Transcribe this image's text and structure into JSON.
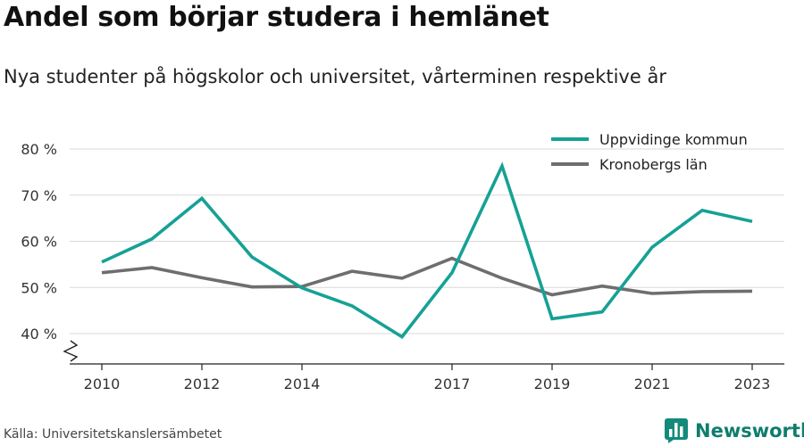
{
  "title": "Andel som börjar studera i hemlänet",
  "subtitle": "Nya studenter på högskolor och universitet, vårterminen respektive år",
  "source": "Källa: Universitetskanslersämbetet",
  "brand": {
    "name": "Newsworthy",
    "icon": "bar-chart-logo-icon",
    "color": "#138a7a"
  },
  "chart_data": {
    "type": "line",
    "x_ticks": [
      "2010",
      "2012",
      "2014",
      "2017",
      "2019",
      "2021",
      "2023"
    ],
    "x_range": [
      2010,
      2023
    ],
    "y_ticks": [
      "40 %",
      "50 %",
      "60 %",
      "70 %",
      "80 %"
    ],
    "ylim": [
      40,
      80
    ],
    "y_axis_break": true,
    "grid": true,
    "legend_position": "top-right",
    "series": [
      {
        "name": "Uppvidinge kommun",
        "color": "#16a195",
        "x": [
          2010,
          2011,
          2012,
          2013,
          2014,
          2015,
          2016,
          2017,
          2018,
          2019,
          2020,
          2021,
          2022,
          2023
        ],
        "values": [
          55.5,
          60.5,
          69.3,
          56.6,
          49.9,
          46.0,
          39.3,
          53.2,
          76.3,
          43.2,
          44.7,
          58.7,
          66.7,
          64.3
        ]
      },
      {
        "name": "Kronobergs län",
        "color": "#6e6e70",
        "x": [
          2010,
          2011,
          2012,
          2013,
          2014,
          2015,
          2016,
          2017,
          2018,
          2019,
          2020,
          2021,
          2022,
          2023
        ],
        "values": [
          53.2,
          54.3,
          52.1,
          50.1,
          50.2,
          53.5,
          52.0,
          56.3,
          52.0,
          48.4,
          50.3,
          48.7,
          49.1,
          49.2
        ]
      }
    ]
  }
}
